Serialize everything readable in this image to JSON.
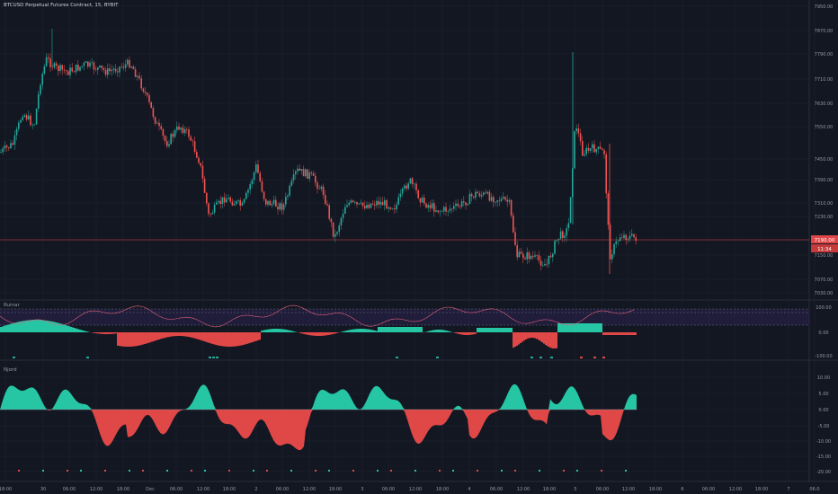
{
  "header": {
    "title": "BTCUSD Perpetual Futures Contract, 15, BYBIT"
  },
  "price_axis": {
    "labels": [
      "7950.00",
      "7870.00",
      "7790.00",
      "7710.00",
      "7630.00",
      "7550.00",
      "7450.00",
      "7390.00",
      "7310.00",
      "7230.00",
      "7150.00",
      "7070.00",
      "7030.00"
    ],
    "current_price": "7190.00",
    "countdown": "11:34"
  },
  "oscillator_axis": {
    "labels": [
      "100.00",
      "0.00",
      "-100.00"
    ]
  },
  "njord_axis": {
    "labels": [
      "10.00",
      "5.00",
      "0.00",
      "-5.00",
      "-10.00",
      "-15.00",
      "-20.00"
    ]
  },
  "time_axis": {
    "labels": [
      "18:00",
      "30",
      "06:00",
      "12:00",
      "18:00",
      "Dec",
      "06:00",
      "12:00",
      "18:00",
      "2",
      "06:00",
      "12:00",
      "18:00",
      "3",
      "06:00",
      "12:00",
      "18:00",
      "4",
      "06:00",
      "12:00",
      "18:00",
      "5",
      "06:00",
      "12:00",
      "18:00",
      "6",
      "06:00",
      "12:00",
      "18:00",
      "7",
      "06:0"
    ]
  },
  "panels": {
    "oscillator_label": "Ruinar",
    "njord_label": "Njord"
  },
  "colors": {
    "background": "#131722",
    "grid": "#1f2430",
    "bull": "#26a69a",
    "bear": "#ef5350",
    "teal_fill": "#26c6a4",
    "red_fill": "#e04848",
    "price_line": "#e04848"
  }
}
